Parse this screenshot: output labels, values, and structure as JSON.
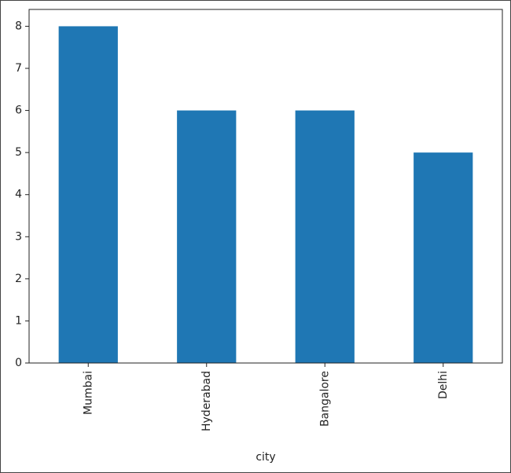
{
  "chart_data": {
    "type": "bar",
    "x_label": "city",
    "categories": [
      "Mumbai",
      "Hyderabad",
      "Bangalore",
      "Delhi"
    ],
    "values": [
      8,
      6,
      6,
      5
    ],
    "color": "#1f77b4",
    "ylim": [
      0,
      8.4
    ],
    "yticks": [
      0,
      1,
      2,
      3,
      4,
      5,
      6,
      7,
      8
    ],
    "grid": false
  }
}
